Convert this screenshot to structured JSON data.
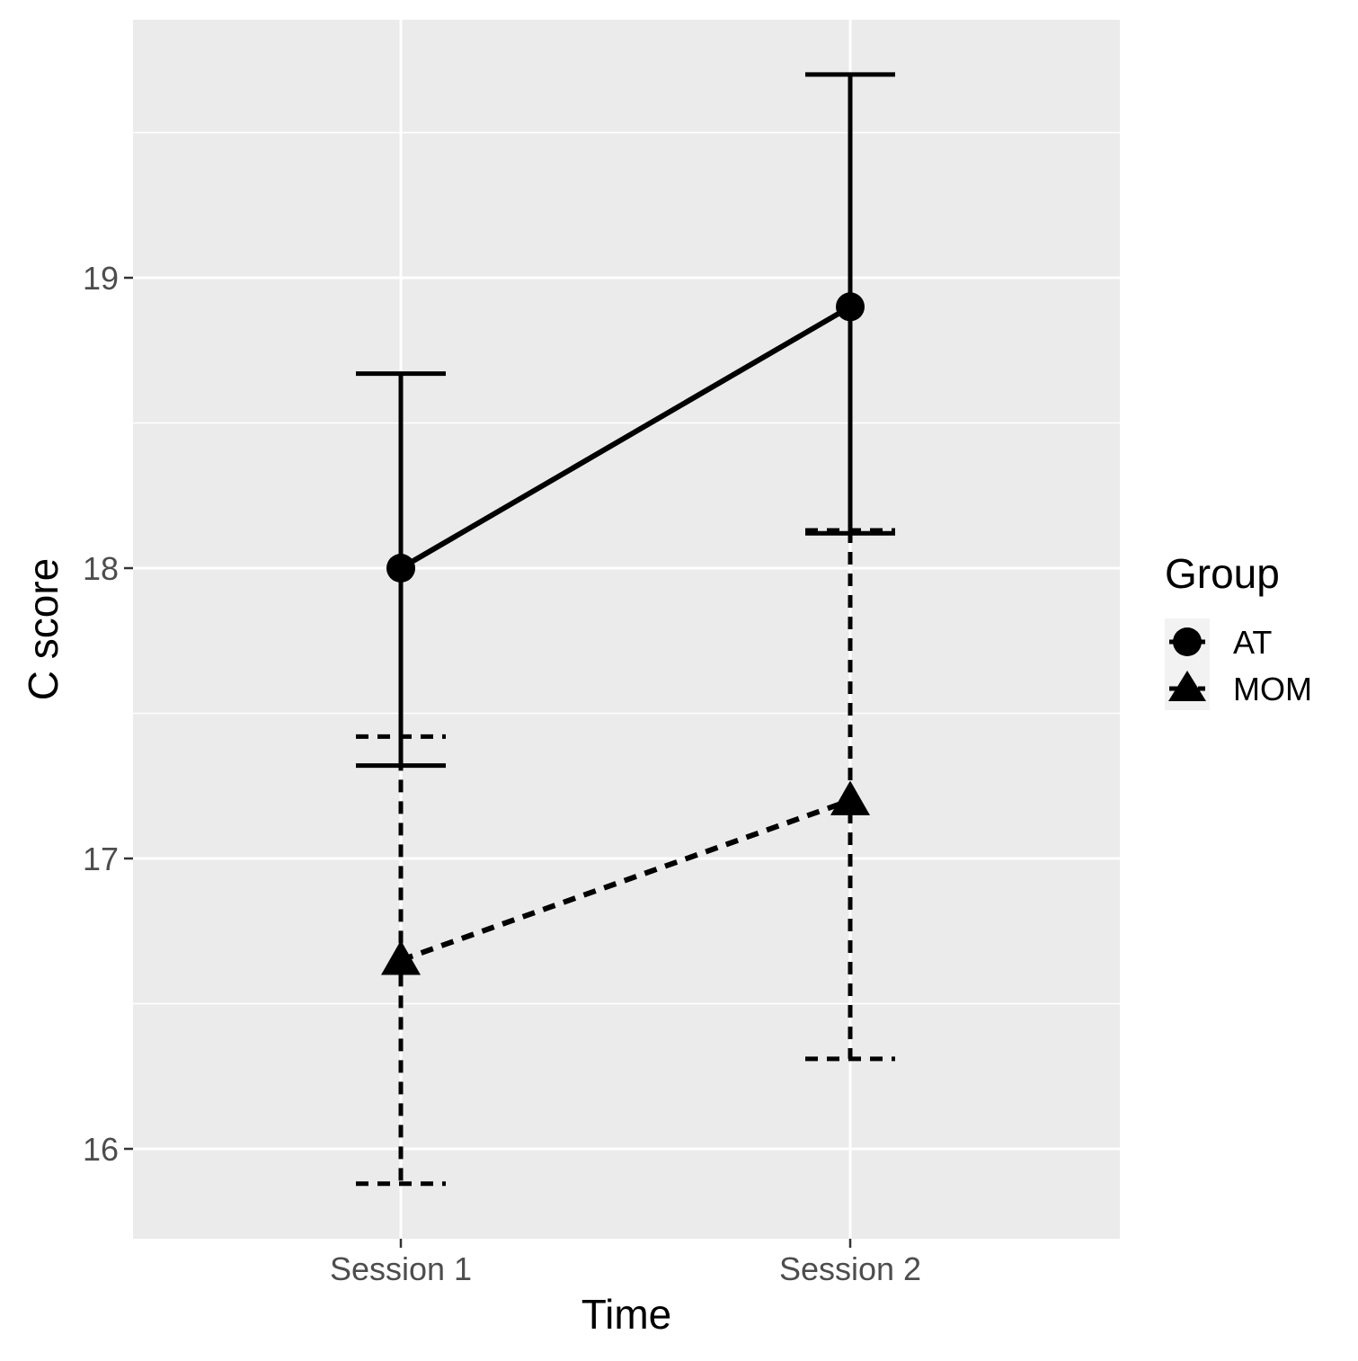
{
  "chart_data": {
    "type": "line",
    "title": "",
    "xlabel": "Time",
    "ylabel": "C score",
    "categories": [
      "Session 1",
      "Session 2"
    ],
    "ylim": [
      15.7,
      19.9
    ],
    "yticks": [
      16,
      17,
      18,
      19
    ],
    "ytick_labels": [
      "16",
      "17",
      "18",
      "19"
    ],
    "grid": true,
    "legend": {
      "title": "Group",
      "position": "right"
    },
    "series": [
      {
        "name": "AT",
        "marker": "circle",
        "linestyle": "solid",
        "values": [
          18.0,
          18.9
        ],
        "error_lower": [
          17.32,
          18.12
        ],
        "error_upper": [
          18.67,
          19.7
        ]
      },
      {
        "name": "MOM",
        "marker": "triangle",
        "linestyle": "dashed",
        "values": [
          16.65,
          17.2
        ],
        "error_lower": [
          15.88,
          16.31
        ],
        "error_upper": [
          17.42,
          18.13
        ]
      }
    ],
    "colors": {
      "panel": "#ebebeb",
      "grid": "#ffffff",
      "series": "#000000",
      "tick_text": "#4d4d4d"
    }
  }
}
